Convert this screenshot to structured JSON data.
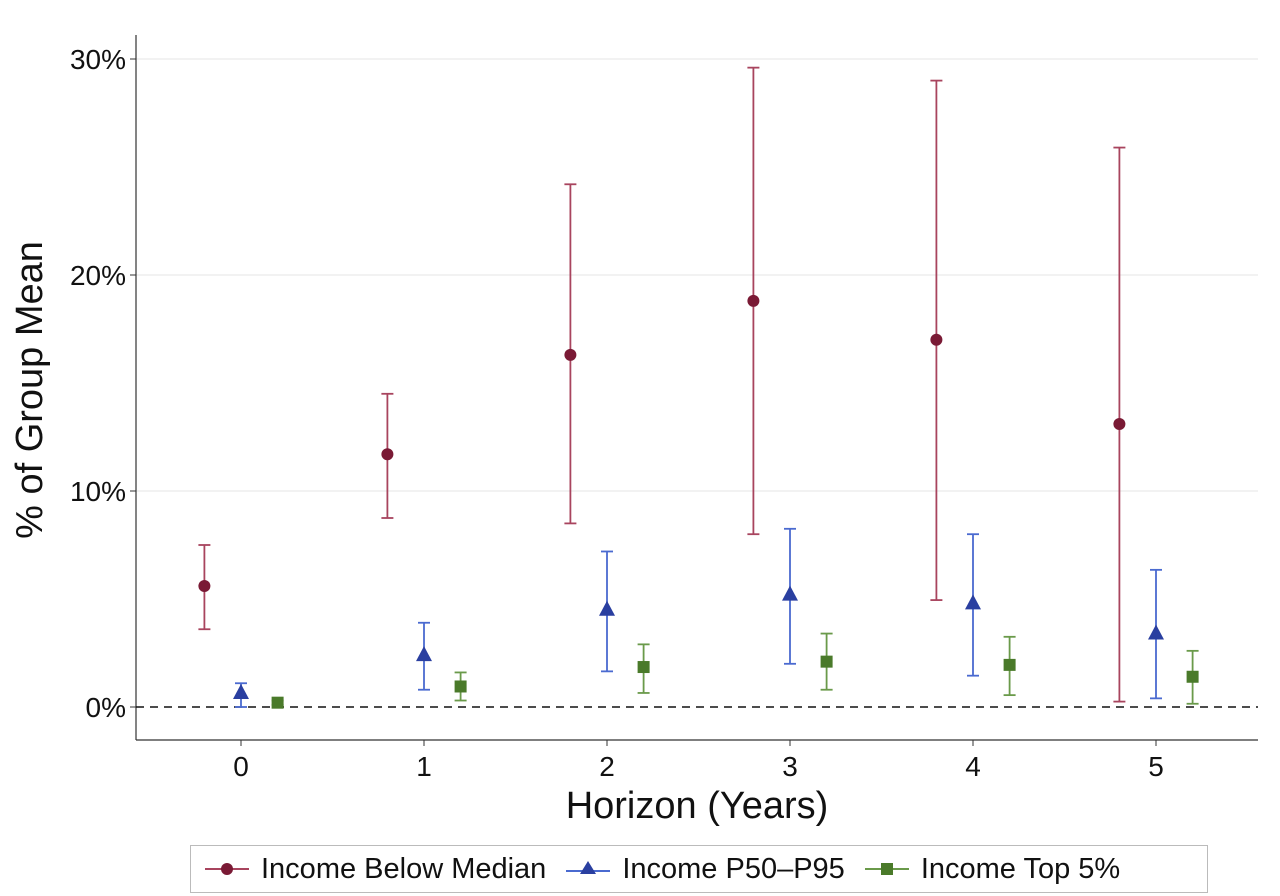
{
  "chart_data": {
    "type": "scatter",
    "title": "",
    "xlabel": "Horizon (Years)",
    "ylabel": "% of Group Mean",
    "x": [
      0,
      1,
      2,
      3,
      4,
      5
    ],
    "xlim": [
      -0.55,
      5.55
    ],
    "ylim": [
      -1.5,
      31
    ],
    "yticks": [
      0,
      10,
      20,
      30
    ],
    "ytick_labels": [
      "0%",
      "10%",
      "20%",
      "30%"
    ],
    "xtick_labels": [
      "0",
      "1",
      "2",
      "3",
      "4",
      "5"
    ],
    "grid": true,
    "reference_line": 0,
    "legend_placement": "bottom",
    "series": [
      {
        "name": "Income Below Median",
        "color": "#7a1a35",
        "line_color": "#a8445e",
        "marker": "circle",
        "offset": -0.2,
        "values": [
          5.6,
          11.7,
          16.3,
          18.8,
          17.0,
          13.1
        ],
        "lower": [
          3.6,
          8.75,
          8.5,
          8.0,
          4.95,
          0.25
        ],
        "upper": [
          7.5,
          14.5,
          24.2,
          29.6,
          29.0,
          25.9
        ]
      },
      {
        "name": "Income P50–P95",
        "color": "#2a3fa0",
        "line_color": "#4a6ad0",
        "marker": "triangle",
        "offset": 0,
        "values": [
          0.65,
          2.4,
          4.5,
          5.2,
          4.8,
          3.4
        ],
        "lower": [
          0.0,
          0.8,
          1.65,
          2.0,
          1.45,
          0.4
        ],
        "upper": [
          1.1,
          3.9,
          7.2,
          8.25,
          8.0,
          6.35
        ]
      },
      {
        "name": "Income Top 5%",
        "color": "#4a7a2a",
        "line_color": "#6a9a4a",
        "marker": "square",
        "offset": 0.2,
        "values": [
          0.2,
          0.95,
          1.85,
          2.1,
          1.95,
          1.4
        ],
        "lower": [
          0.1,
          0.3,
          0.65,
          0.8,
          0.55,
          0.15
        ],
        "upper": [
          0.3,
          1.6,
          2.9,
          3.4,
          3.25,
          2.6
        ]
      }
    ]
  }
}
